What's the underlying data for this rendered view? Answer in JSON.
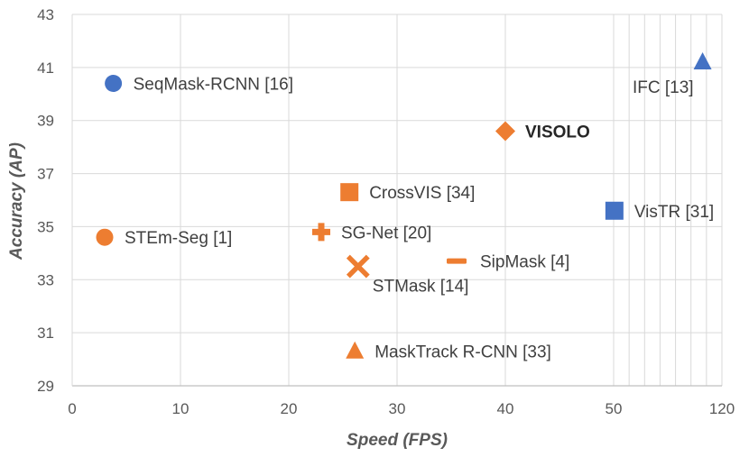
{
  "chart_data": {
    "type": "scatter",
    "xlabel": "Speed (FPS)",
    "ylabel": "Accuracy (AP)",
    "x_ticks": [
      "0",
      "10",
      "20",
      "30",
      "40",
      "50",
      "120"
    ],
    "y_ticks": [
      "29",
      "31",
      "33",
      "35",
      "37",
      "39",
      "41",
      "43"
    ],
    "ylim": [
      29,
      43
    ],
    "grid": true,
    "colors": {
      "orange": "#ED7D31",
      "blue": "#4472C4",
      "grid": "#D9D9D9",
      "axis": "#BFBFBF"
    },
    "points": [
      {
        "label": "SeqMask-RCNN [16]",
        "x": 3.8,
        "y": 40.4,
        "marker": "circle",
        "color": "#4472C4",
        "label_pos": "right",
        "bold": false
      },
      {
        "label": "IFC [13]",
        "x": 107.5,
        "y": 41.2,
        "marker": "triangle",
        "color": "#4472C4",
        "label_pos": "below-left",
        "bold": false
      },
      {
        "label": "VISOLO",
        "x": 40,
        "y": 38.6,
        "marker": "diamond",
        "color": "#ED7D31",
        "label_pos": "right",
        "bold": true
      },
      {
        "label": "CrossVIS [34]",
        "x": 25.6,
        "y": 36.3,
        "marker": "square",
        "color": "#ED7D31",
        "label_pos": "right",
        "bold": false
      },
      {
        "label": "VisTR [31]",
        "x": 50.5,
        "y": 35.6,
        "marker": "square",
        "color": "#4472C4",
        "label_pos": "right",
        "bold": false
      },
      {
        "label": "STEm-Seg [1]",
        "x": 3,
        "y": 34.6,
        "marker": "circle",
        "color": "#ED7D31",
        "label_pos": "right",
        "bold": false
      },
      {
        "label": "SG-Net [20]",
        "x": 23,
        "y": 34.8,
        "marker": "plus",
        "color": "#ED7D31",
        "label_pos": "right",
        "bold": false
      },
      {
        "label": "SipMask [4]",
        "x": 35.5,
        "y": 33.7,
        "marker": "dash",
        "color": "#ED7D31",
        "label_pos": "right",
        "bold": false
      },
      {
        "label": "STMask [14]",
        "x": 26.4,
        "y": 33.5,
        "marker": "x",
        "color": "#ED7D31",
        "label_pos": "below-right",
        "bold": false
      },
      {
        "label": "MaskTrack R-CNN [33]",
        "x": 26.1,
        "y": 30.3,
        "marker": "triangle",
        "color": "#ED7D31",
        "label_pos": "right",
        "bold": false
      }
    ]
  }
}
